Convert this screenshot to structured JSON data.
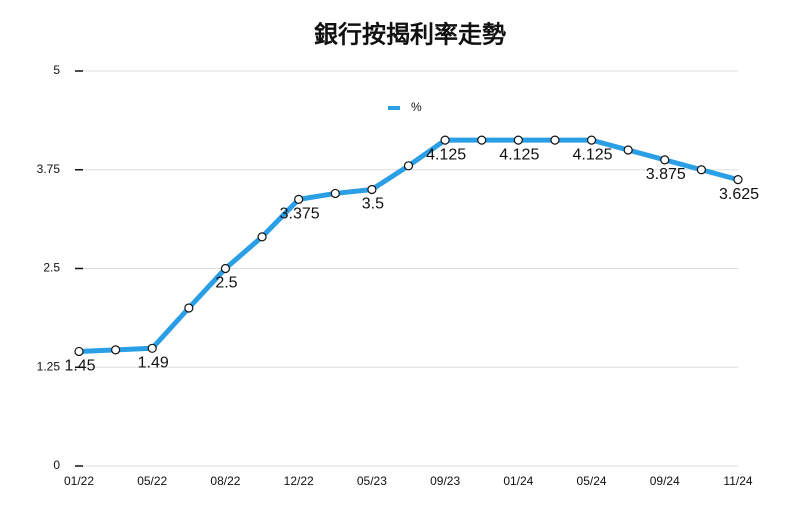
{
  "chart_data": {
    "type": "line",
    "title": "銀行按揭利率走勢",
    "categories": [
      "01/22",
      null,
      "05/22",
      null,
      "08/22",
      null,
      "12/22",
      null,
      "05/23",
      null,
      "09/23",
      null,
      "01/24",
      null,
      "05/24",
      null,
      "09/24",
      null,
      "11/24"
    ],
    "series": [
      {
        "name": "%",
        "color": "#2b9fe6",
        "values": [
          1.45,
          1.47,
          1.49,
          2.0,
          2.5,
          2.9,
          3.375,
          3.45,
          3.5,
          3.8,
          4.125,
          4.125,
          4.125,
          4.125,
          4.125,
          4.0,
          3.875,
          3.75,
          3.625
        ],
        "value_labels": [
          "1.45",
          null,
          "1.49",
          null,
          "2.5",
          null,
          "3.375",
          null,
          "3.5",
          null,
          "4.125",
          null,
          "4.125",
          null,
          "4.125",
          null,
          "3.875",
          null,
          "3.625"
        ]
      }
    ],
    "ylim": [
      0,
      5
    ],
    "yticks": [
      0,
      1.25,
      2.5,
      3.75,
      5
    ],
    "grid": true,
    "legend": "top"
  }
}
